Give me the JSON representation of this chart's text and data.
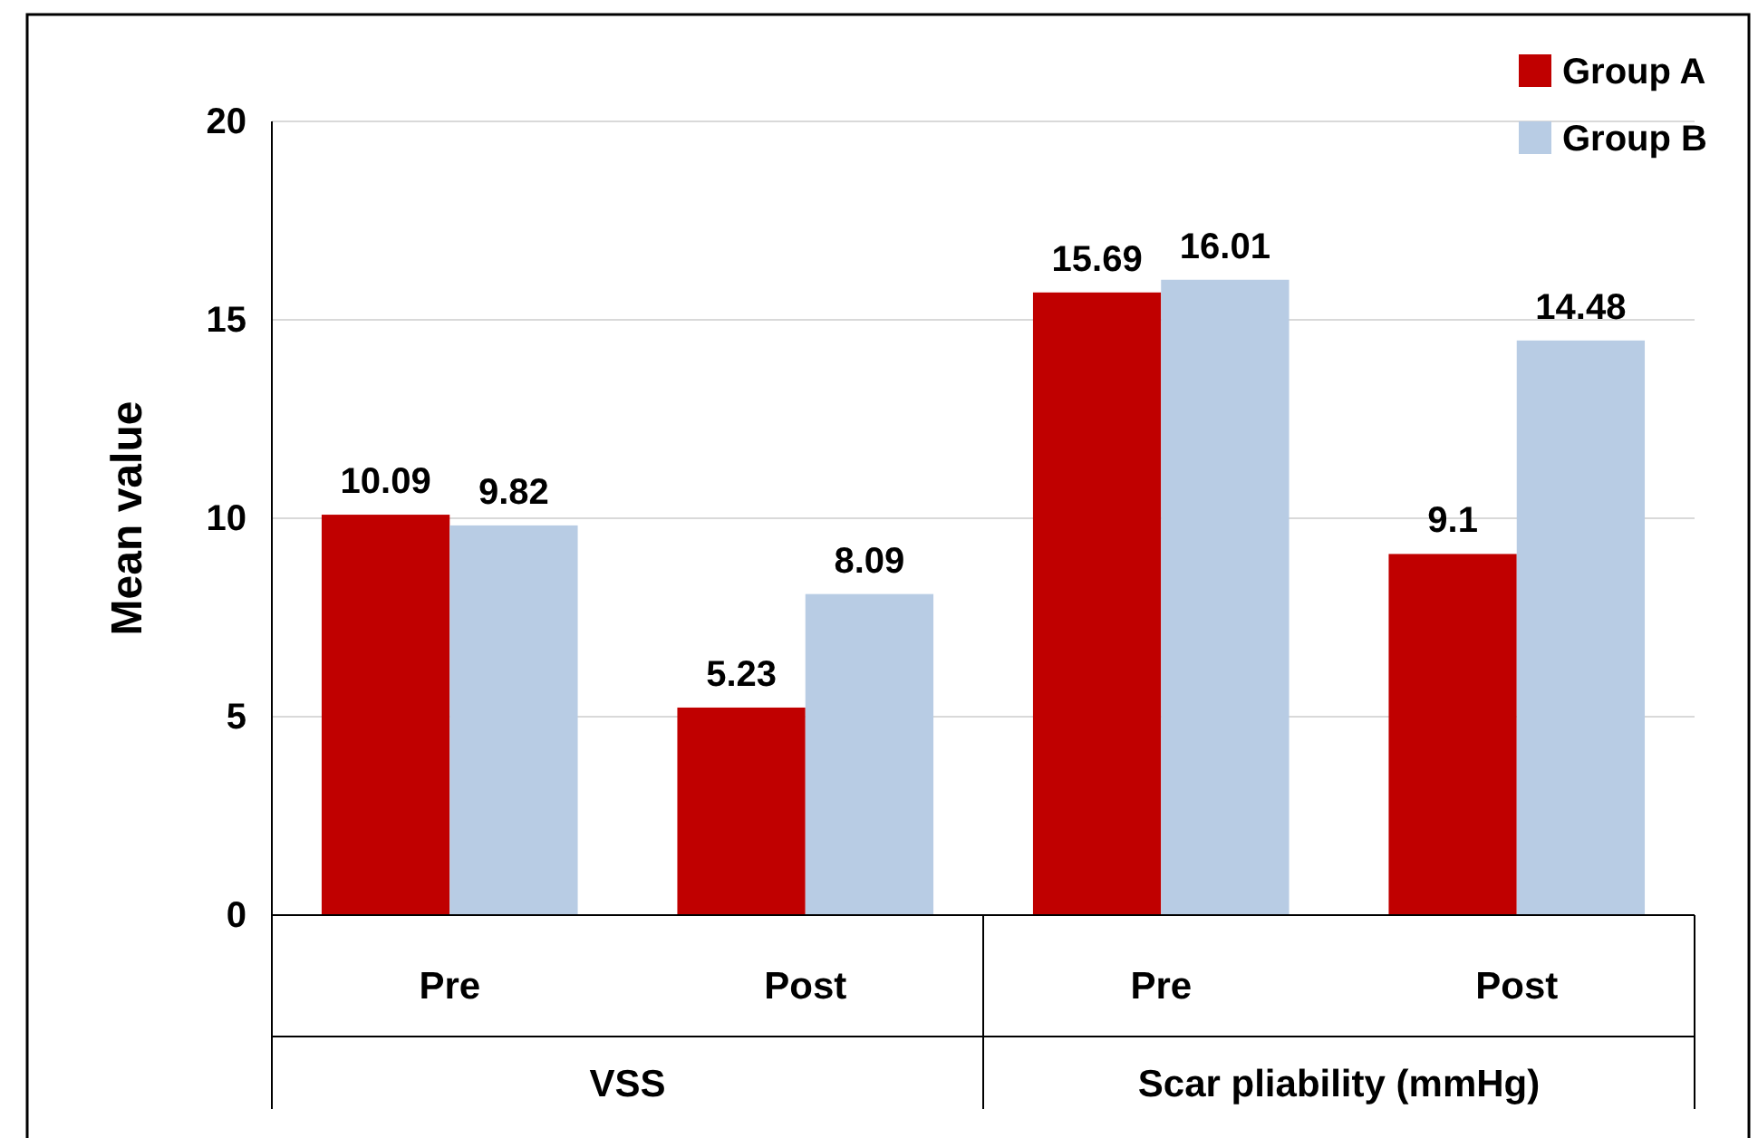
{
  "chart_data": {
    "type": "bar",
    "ylabel": "Mean value",
    "categories": [
      "Pre",
      "Post",
      "Pre",
      "Post"
    ],
    "series": [
      {
        "name": "Group A",
        "color": "#c00000",
        "values": [
          10.09,
          5.23,
          15.69,
          9.1
        ]
      },
      {
        "name": "Group B",
        "color": "#b8cce4",
        "values": [
          9.82,
          8.09,
          16.01,
          14.48
        ]
      }
    ],
    "annotations": [
      "VSS",
      "Scar pliability (mmHg)"
    ],
    "ylim": [
      0,
      20
    ],
    "yticks": [
      0,
      5,
      10,
      15,
      20
    ],
    "grid": "y",
    "legend": "top right",
    "data_labels": true
  }
}
